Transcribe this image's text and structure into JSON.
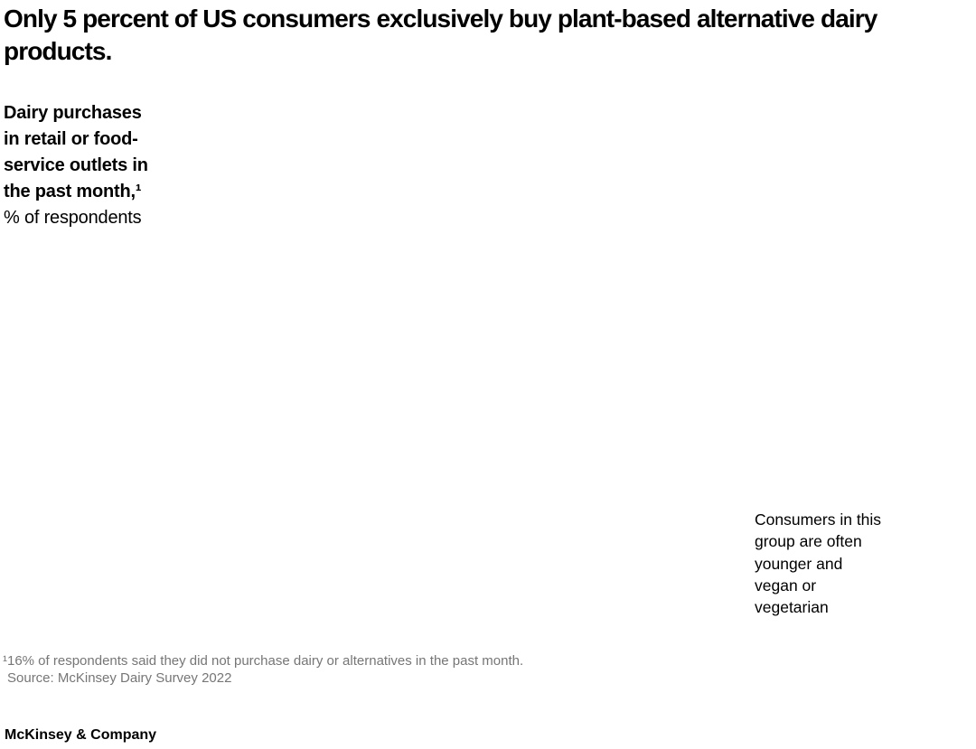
{
  "colors": {
    "background": "#ffffff",
    "text": "#000000",
    "muted": "#767676"
  },
  "header": {
    "title": "Only 5 percent of US consumers exclusively buy plant-based alternative dairy products."
  },
  "chart": {
    "label_title": "Dairy purchases\nin retail or food-\nservice outlets in\nthe past month,¹",
    "label_unit": "% of respondents",
    "annotation": "Consumers in this\ngroup are often\nyounger and\nvegan or\nvegetarian"
  },
  "chart_data": {
    "type": "bar",
    "title": "Dairy purchases in retail or food-service outlets in the past month",
    "ylabel": "% of respondents",
    "categories": [],
    "series": [],
    "annotations": [
      "Consumers in this group are often younger and vegan or vegetarian"
    ],
    "values_visible_in_text": {
      "exclusively_plant_based_pct": 5,
      "did_not_purchase_pct": 16
    },
    "plot_area_blank_in_screenshot": true
  },
  "footnotes": {
    "note1": "¹16% of respondents said they did not purchase dairy or alternatives in the past month.",
    "source": "Source: McKinsey Dairy Survey 2022"
  },
  "footer": {
    "brand": "McKinsey & Company"
  }
}
